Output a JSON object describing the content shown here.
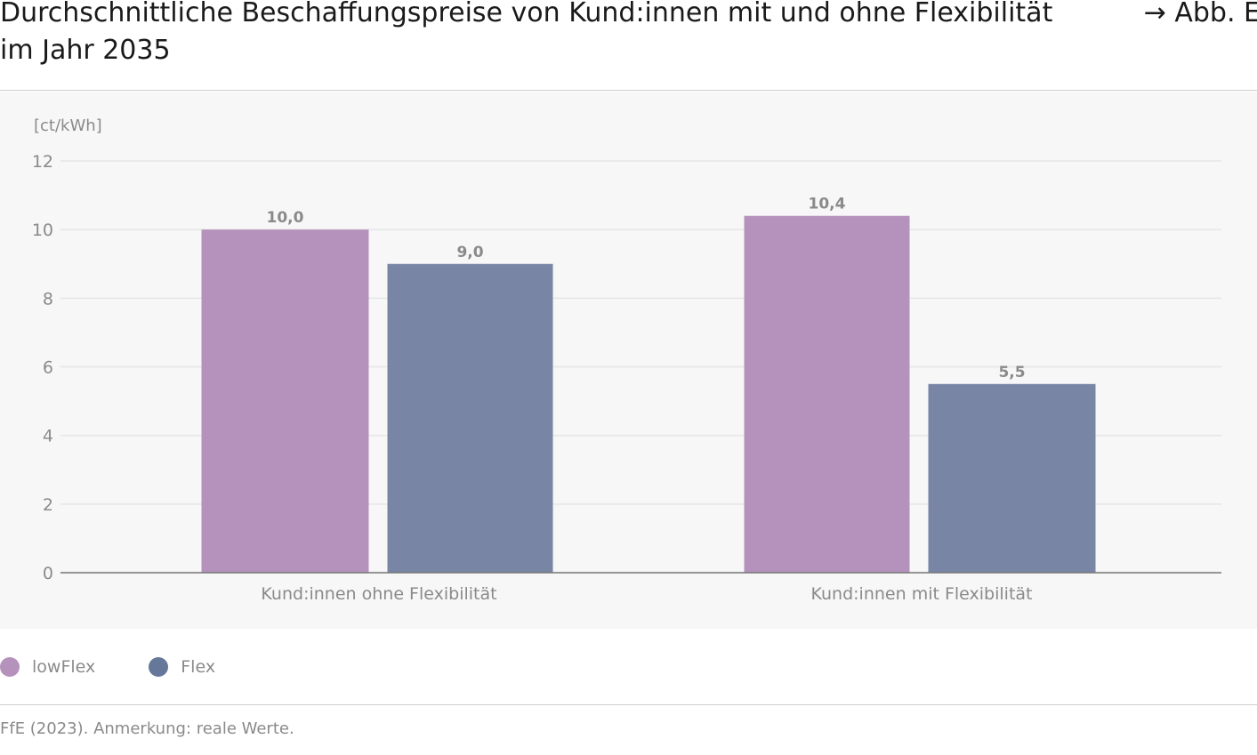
{
  "header": {
    "title": "Durchschnittliche Beschaffungspreise von Kund:innen mit und ohne Flexibilität im Jahr 2035",
    "figure_ref": "→ Abb. E"
  },
  "chart_data": {
    "type": "bar",
    "ylabel": "[ct/kWh]",
    "ylim": [
      0,
      12
    ],
    "yticks": [
      0,
      2,
      4,
      6,
      8,
      10,
      12
    ],
    "grid": true,
    "categories": [
      "Kund:innen ohne Flexibilität",
      "Kund:innen mit Flexibilität"
    ],
    "series": [
      {
        "name": "lowFlex",
        "color": "#b592bc",
        "values": [
          10.0,
          10.4
        ],
        "labels": [
          "10,0",
          "10,4"
        ]
      },
      {
        "name": "Flex",
        "color": "#7885a4",
        "values": [
          9.0,
          5.5
        ],
        "labels": [
          "9,0",
          "5,5"
        ]
      }
    ],
    "legend_position": "bottom-left"
  },
  "legend": {
    "items": [
      {
        "label": "lowFlex",
        "color": "#b592bc"
      },
      {
        "label": "Flex",
        "color": "#66789a"
      }
    ]
  },
  "footer": {
    "source": "FfE (2023). Anmerkung: reale Werte."
  }
}
